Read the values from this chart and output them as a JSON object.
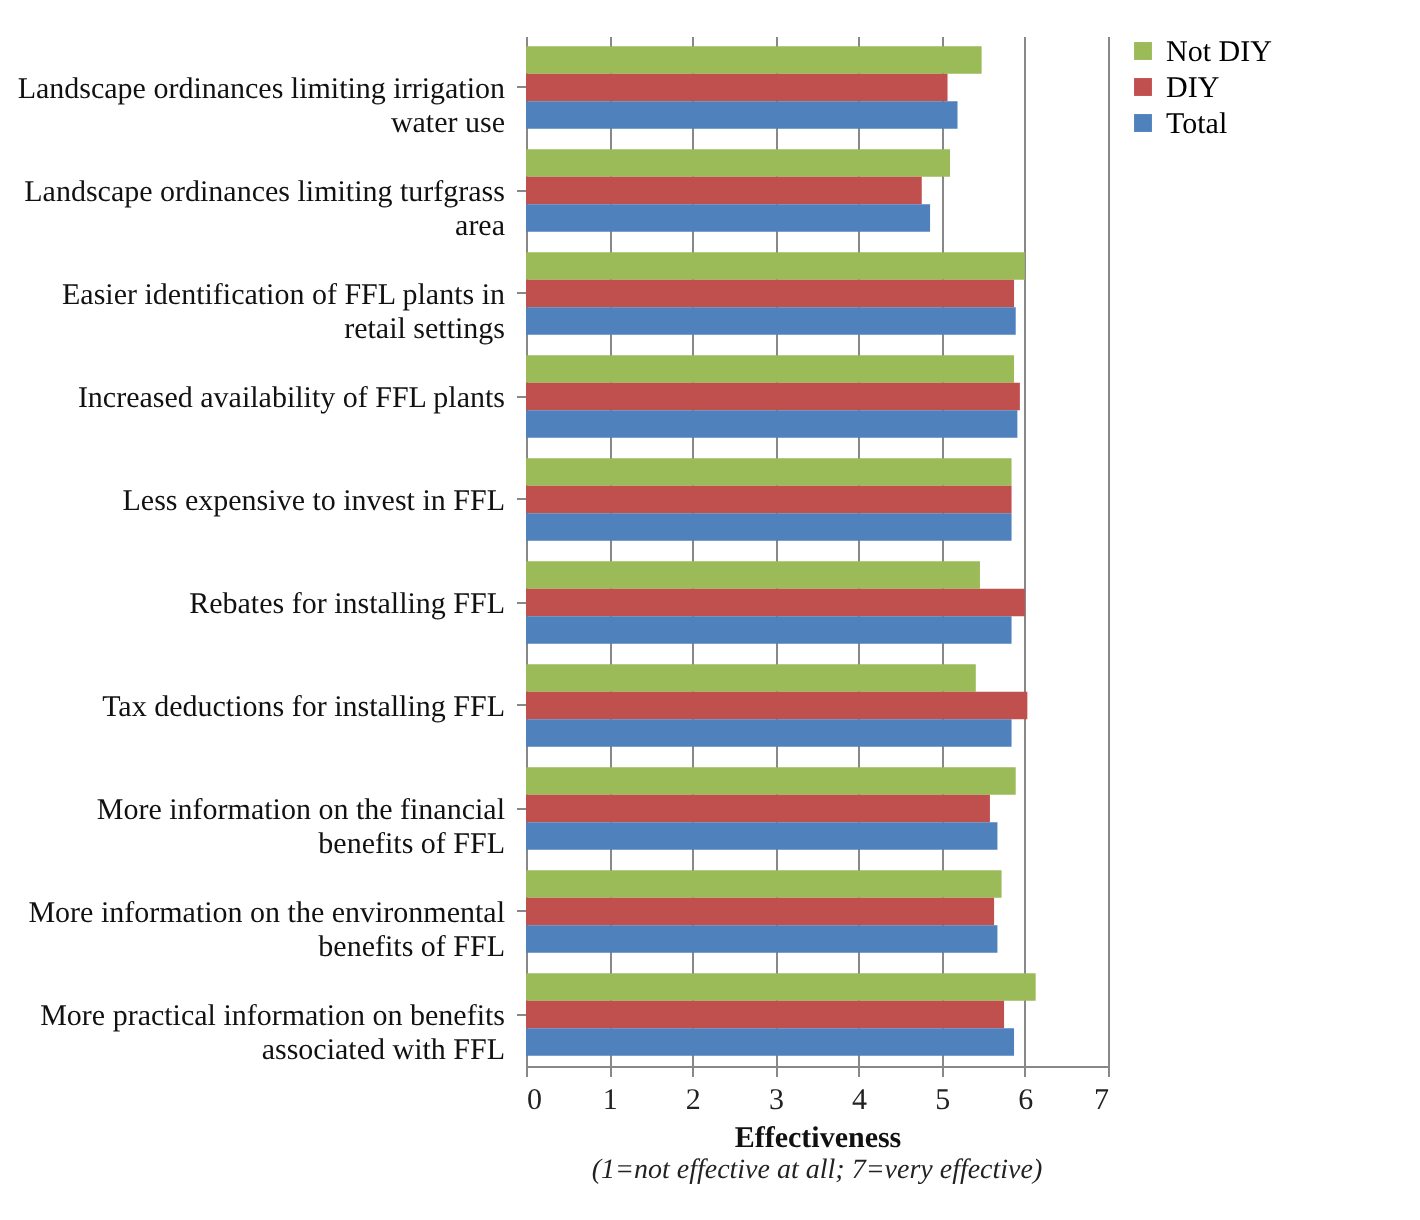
{
  "chart_data": {
    "type": "bar",
    "orientation": "horizontal",
    "xlabel": "Effectiveness",
    "annotations": [
      "(1=not effective at all; 7=very effective)"
    ],
    "categories": [
      "Landscape ordinances limiting irrigation water use",
      "Landscape ordinances limiting turfgrass area",
      "Easier identification of FFL plants in retail settings",
      "Increased availability of FFL plants",
      "Less expensive to invest in FFL",
      "Rebates for installing FFL",
      "Tax deductions for installing FFL",
      "More information on the financial benefits of FFL",
      "More information on the environmental benefits of FFL",
      "More practical information on benefits associated with FFL"
    ],
    "series": [
      {
        "name": "Not DIY",
        "color": "#9bbb59",
        "values": [
          5.48,
          5.1,
          6.0,
          5.87,
          5.84,
          5.46,
          5.41,
          5.89,
          5.72,
          6.13
        ]
      },
      {
        "name": "DIY",
        "color": "#c0504d",
        "values": [
          5.07,
          4.76,
          5.87,
          5.94,
          5.84,
          6.0,
          6.03,
          5.58,
          5.63,
          5.75
        ]
      },
      {
        "name": "Total",
        "color": "#4f81bd",
        "values": [
          5.19,
          4.86,
          5.89,
          5.91,
          5.84,
          5.84,
          5.84,
          5.67,
          5.67,
          5.87
        ]
      }
    ],
    "xlim": [
      0,
      7
    ],
    "xticks": [
      0,
      1,
      2,
      3,
      4,
      5,
      6,
      7
    ],
    "grid": "x",
    "legend": "right"
  }
}
